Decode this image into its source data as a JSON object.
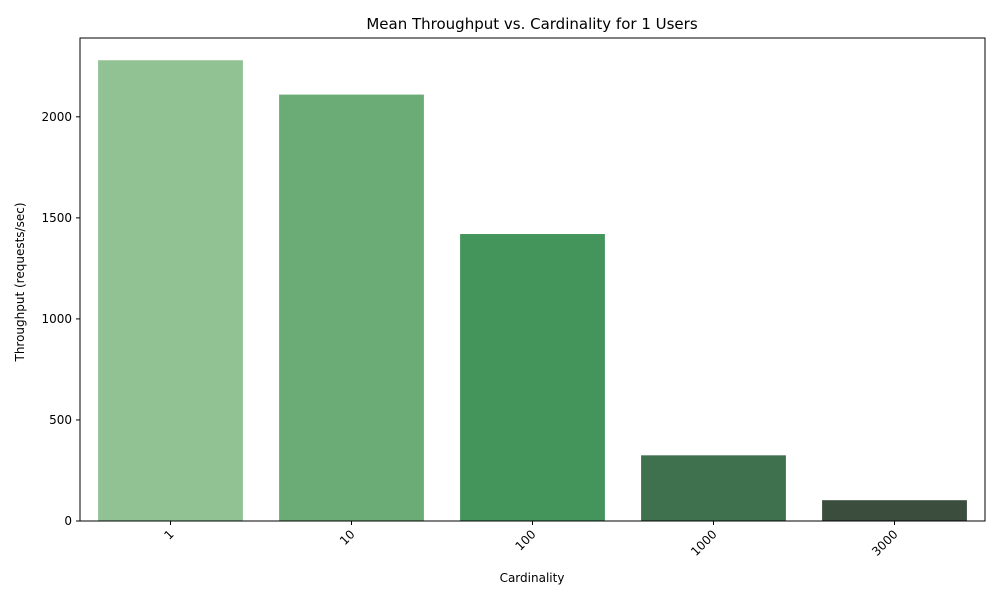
{
  "chart_data": {
    "type": "bar",
    "title": "Mean Throughput vs. Cardinality for 1 Users",
    "xlabel": "Cardinality",
    "ylabel": "Throughput (requests/sec)",
    "categories": [
      "1",
      "10",
      "100",
      "1000",
      "3000"
    ],
    "values": [
      2280,
      2110,
      1420,
      325,
      103
    ],
    "colors": [
      "#90c293",
      "#6aab76",
      "#44955b",
      "#3f714f",
      "#3b4e3e"
    ],
    "ylim": [
      0,
      2390
    ],
    "yticks": [
      0,
      500,
      1000,
      1500,
      2000
    ],
    "xtick_rotation": 45,
    "grid": false,
    "legend": "none"
  }
}
